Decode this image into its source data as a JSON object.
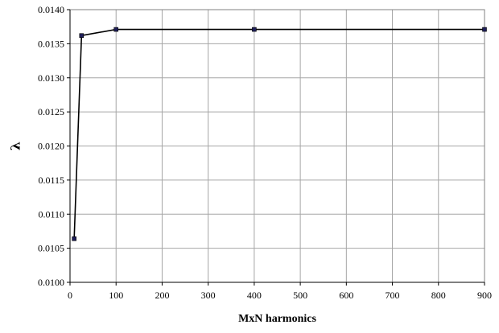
{
  "chart_data": {
    "type": "line",
    "title": "",
    "xlabel": "MxN harmonics",
    "ylabel": "λ",
    "xlim": [
      0,
      900
    ],
    "ylim": [
      0.01,
      0.014
    ],
    "x_ticks": [
      0,
      100,
      200,
      300,
      400,
      500,
      600,
      700,
      800,
      900
    ],
    "y_ticks": [
      0.01,
      0.0105,
      0.011,
      0.0115,
      0.012,
      0.0125,
      0.013,
      0.0135,
      0.014
    ],
    "y_tick_decimals": 4,
    "grid": true,
    "legend": "none",
    "series": [
      {
        "x": [
          9,
          25,
          100,
          400,
          900
        ],
        "y": [
          0.01064,
          0.01362,
          0.01371,
          0.01371,
          0.01371
        ],
        "color": "#000000",
        "marker": "square",
        "marker_color": "#1f1f5a"
      }
    ]
  }
}
